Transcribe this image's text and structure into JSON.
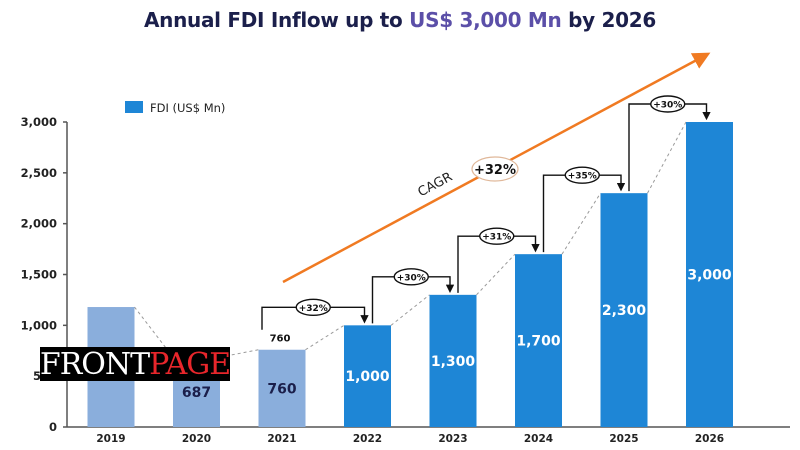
{
  "chart_data": {
    "type": "bar",
    "title_parts": [
      "Annual FDI Inflow up to ",
      "US$ 3,000 Mn",
      " by 2026"
    ],
    "categories": [
      "2019",
      "2020",
      "2021",
      "2022",
      "2023",
      "2024",
      "2025",
      "2026"
    ],
    "series": [
      {
        "name": "FDI (US$ Mn)",
        "values": [
          1180,
          687,
          760,
          1000,
          1300,
          1700,
          2300,
          3000
        ],
        "value_labels": [
          "",
          "687",
          "760",
          "1,000",
          "1,300",
          "1,700",
          "2,300",
          "3,000"
        ],
        "kind": [
          "actual",
          "actual",
          "actual",
          "projected",
          "projected",
          "projected",
          "projected",
          "projected"
        ]
      }
    ],
    "extra_label_2021": "760",
    "growth_annotations": [
      {
        "from": "2021",
        "to": "2022",
        "label": "+32%"
      },
      {
        "from": "2022",
        "to": "2023",
        "label": "+30%"
      },
      {
        "from": "2023",
        "to": "2024",
        "label": "+31%"
      },
      {
        "from": "2024",
        "to": "2025",
        "label": "+35%"
      },
      {
        "from": "2025",
        "to": "2026",
        "label": "+30%"
      }
    ],
    "cagr": {
      "label": "CAGR",
      "value": "+32%"
    },
    "yticks": [
      0,
      500,
      1000,
      1500,
      2000,
      2500,
      3000
    ],
    "ytick_labels": [
      "0",
      "500",
      "1,000",
      "1,500",
      "2,000",
      "2,500",
      "3,000"
    ],
    "ylim": [
      0,
      3000
    ],
    "xlabel": "",
    "ylabel": "",
    "grid": false,
    "legend": {
      "position": "top-left",
      "entries": [
        "FDI (US$ Mn)"
      ]
    },
    "colors": {
      "actual": "#8aaedc",
      "projected": "#1e86d6",
      "title": "#1b1f4b",
      "title_highlight": "#5b4fa8",
      "cagr_line": "#f07a22",
      "axis": "#555555"
    }
  },
  "watermark": {
    "part1": "FRONT",
    "part2": "PAGE"
  }
}
